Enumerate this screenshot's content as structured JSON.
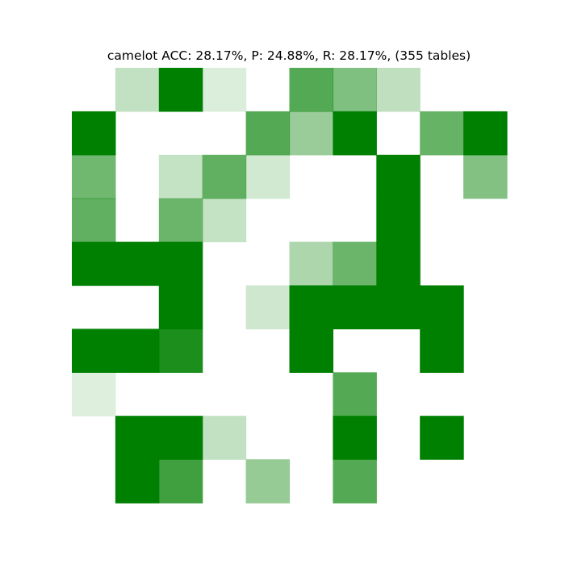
{
  "chart_data": {
    "type": "heatmap",
    "title": "camelot ACC: 28.17%, P: 24.88%, R: 28.17%, (355 tables)",
    "rows": 10,
    "cols": 10,
    "color": "#008000",
    "grid": false,
    "values": [
      [
        0.0,
        0.24,
        1.0,
        0.14,
        0.0,
        0.67,
        0.5,
        0.25,
        0.0,
        0.0
      ],
      [
        1.0,
        0.0,
        0.0,
        0.0,
        0.67,
        0.4,
        1.0,
        0.0,
        0.6,
        1.0
      ],
      [
        0.56,
        0.0,
        0.23,
        0.62,
        0.18,
        0.0,
        0.0,
        1.0,
        0.0,
        0.49
      ],
      [
        0.62,
        0.0,
        0.58,
        0.23,
        0.0,
        0.0,
        0.0,
        1.0,
        0.0,
        0.0
      ],
      [
        1.0,
        1.0,
        1.0,
        0.0,
        0.0,
        0.32,
        0.58,
        1.0,
        0.0,
        0.0
      ],
      [
        0.0,
        0.0,
        1.0,
        0.0,
        0.19,
        1.0,
        1.0,
        1.0,
        1.0,
        0.0
      ],
      [
        1.0,
        1.0,
        0.89,
        0.0,
        0.0,
        1.0,
        0.0,
        0.0,
        1.0,
        0.0
      ],
      [
        0.13,
        0.0,
        0.0,
        0.0,
        0.0,
        0.0,
        0.67,
        0.0,
        0.0,
        0.0
      ],
      [
        0.0,
        1.0,
        1.0,
        0.24,
        0.0,
        0.0,
        1.0,
        0.0,
        1.0,
        0.0
      ],
      [
        0.0,
        1.0,
        0.75,
        0.0,
        0.41,
        0.0,
        0.67,
        0.0,
        0.0,
        0.0
      ]
    ]
  }
}
